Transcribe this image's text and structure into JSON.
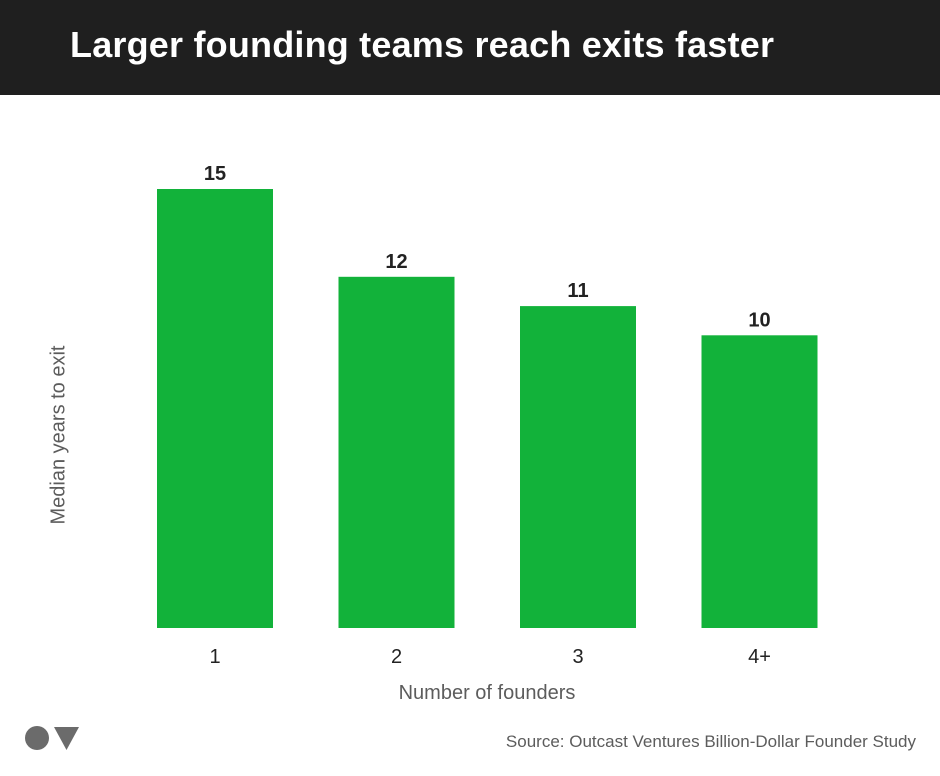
{
  "header": {
    "title": "Larger founding teams reach exits faster"
  },
  "colors": {
    "header_bg": "#1f1f1f",
    "bar": "#12b23a",
    "text_dark": "#222222",
    "text_muted": "#5c5c5c",
    "logo": "#6b6b6b"
  },
  "footer": {
    "source": "Source: Outcast Ventures Billion-Dollar Founder Study",
    "logo_icon": "ov-logo-icon"
  },
  "chart_data": {
    "type": "bar",
    "title": "Larger founding teams reach exits faster",
    "xlabel": "Number of founders",
    "ylabel": "Median years to exit",
    "categories": [
      "1",
      "2",
      "3",
      "4+"
    ],
    "values": [
      15,
      12,
      11,
      10
    ],
    "ylim": [
      0,
      15
    ],
    "grid": false,
    "legend": "none"
  }
}
